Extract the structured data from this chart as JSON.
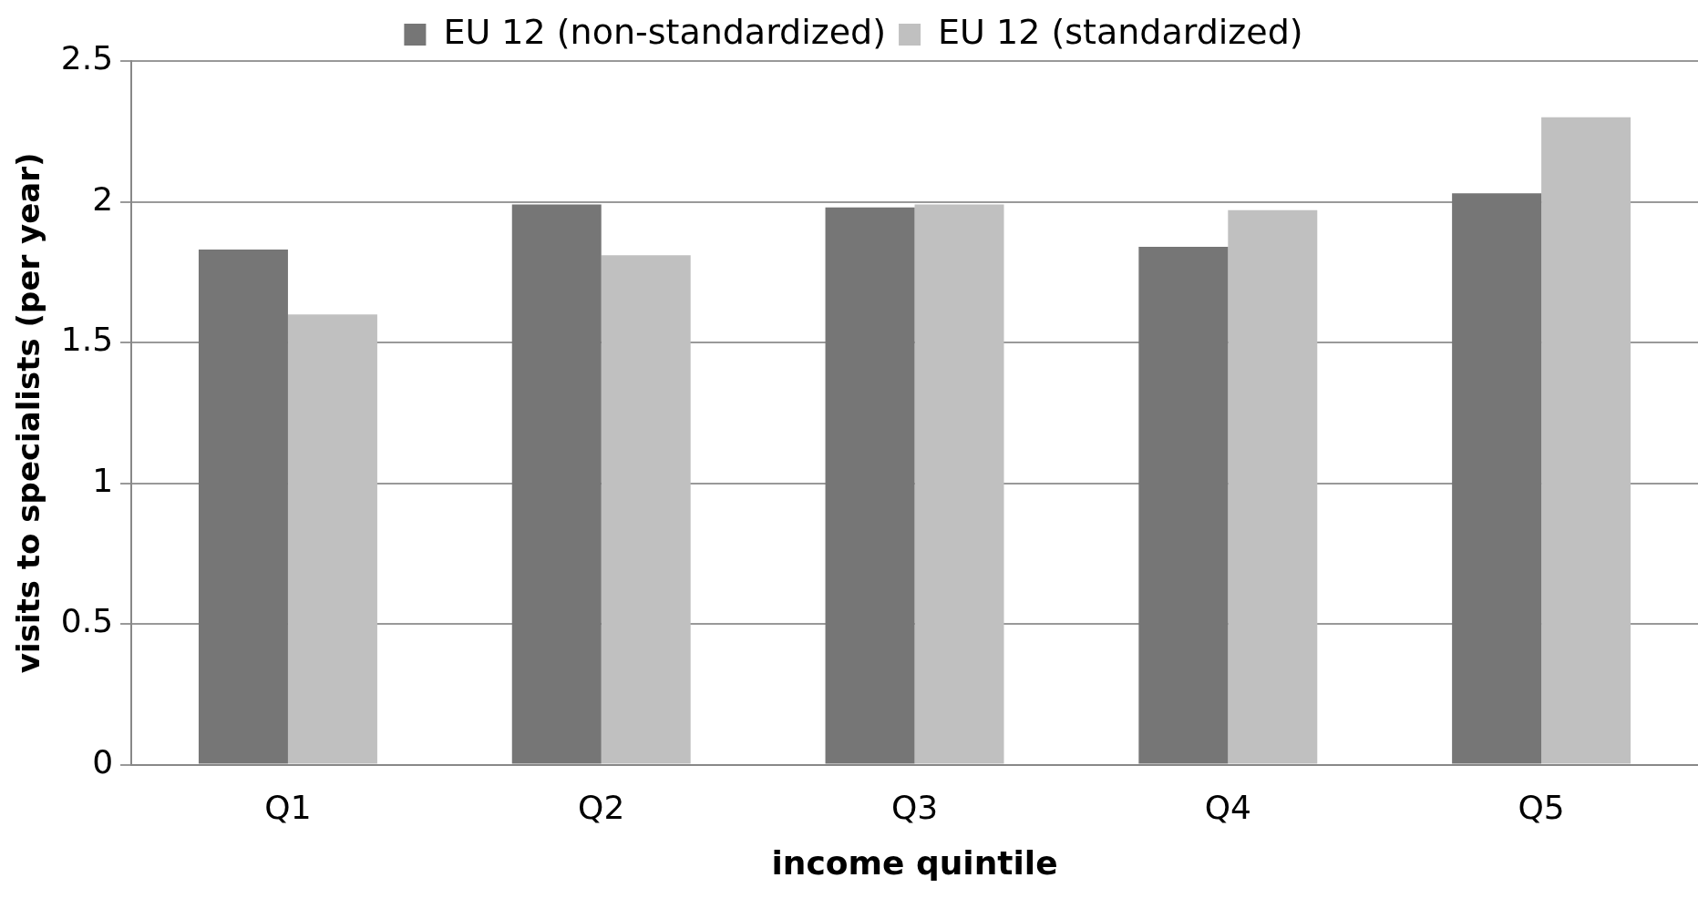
{
  "chart_data": {
    "type": "bar",
    "xlabel": "income quintile",
    "ylabel": "visits to specialists (per year)",
    "categories": [
      "Q1",
      "Q2",
      "Q3",
      "Q4",
      "Q5"
    ],
    "series": [
      {
        "name": "EU 12 (non-standardized)",
        "color": "#767676",
        "values": [
          1.83,
          1.99,
          1.98,
          1.84,
          2.03
        ]
      },
      {
        "name": "EU 12 (standardized)",
        "color": "#c0c0c0",
        "values": [
          1.6,
          1.81,
          1.99,
          1.97,
          2.3
        ]
      }
    ],
    "ylim": [
      0,
      2.5
    ],
    "yticks": [
      0,
      0.5,
      1,
      1.5,
      2,
      2.5
    ],
    "grid": "y",
    "legend": "top"
  }
}
